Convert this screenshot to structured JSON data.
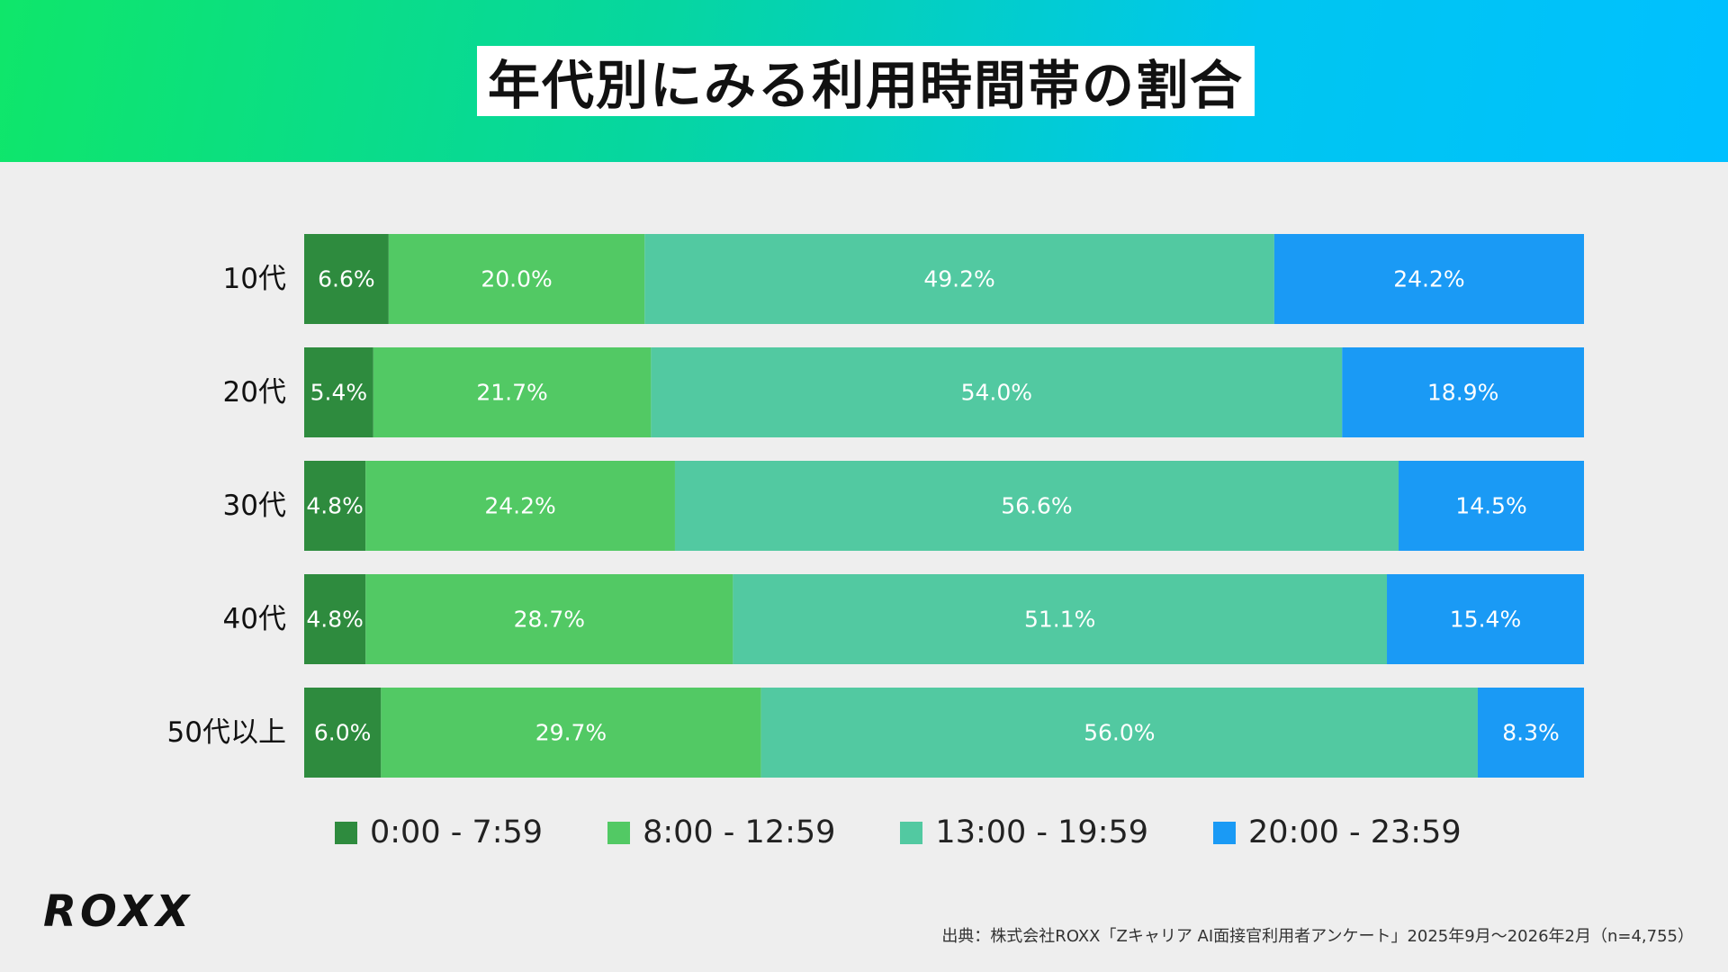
{
  "title": "年代別にみる利用時間帯の割合",
  "colors": {
    "series": [
      "#2e8b3e",
      "#52c964",
      "#52c9a1",
      "#1a9af5"
    ],
    "background": "#eeeeee",
    "bar_text": "#ffffff"
  },
  "chart_data": {
    "type": "bar",
    "orientation": "horizontal",
    "stacked": true,
    "normalized_percent": true,
    "title": "年代別にみる利用時間帯の割合",
    "categories": [
      "10代",
      "20代",
      "30代",
      "40代",
      "50代以上"
    ],
    "series": [
      {
        "name": "0:00 - 7:59",
        "values": [
          6.6,
          5.4,
          4.8,
          4.8,
          6.0
        ],
        "labels": [
          "6.6%",
          "5.4%",
          "4.8%",
          "4.8%",
          "6.0%"
        ]
      },
      {
        "name": "8:00 - 12:59",
        "values": [
          20.0,
          21.7,
          24.2,
          28.7,
          29.7
        ],
        "labels": [
          "20.0%",
          "21.7%",
          "24.2%",
          "28.7%",
          "29.7%"
        ]
      },
      {
        "name": "13:00 - 19:59",
        "values": [
          49.2,
          54.0,
          56.6,
          51.1,
          56.0
        ],
        "labels": [
          "49.2%",
          "54.0%",
          "56.6%",
          "51.1%",
          "56.0%"
        ]
      },
      {
        "name": "20:00 - 23:59",
        "values": [
          24.2,
          18.9,
          14.5,
          15.4,
          8.3
        ],
        "labels": [
          "24.2%",
          "18.9%",
          "14.5%",
          "15.4%",
          "8.3%"
        ]
      }
    ],
    "xlim": [
      0,
      100
    ],
    "grid": false,
    "legend": "bottom"
  },
  "footer": {
    "logo": "ROXX",
    "source": "出典：株式会社ROXX「Zキャリア AI面接官利用者アンケート」2025年9月〜2026年2月（n=4,755）"
  }
}
